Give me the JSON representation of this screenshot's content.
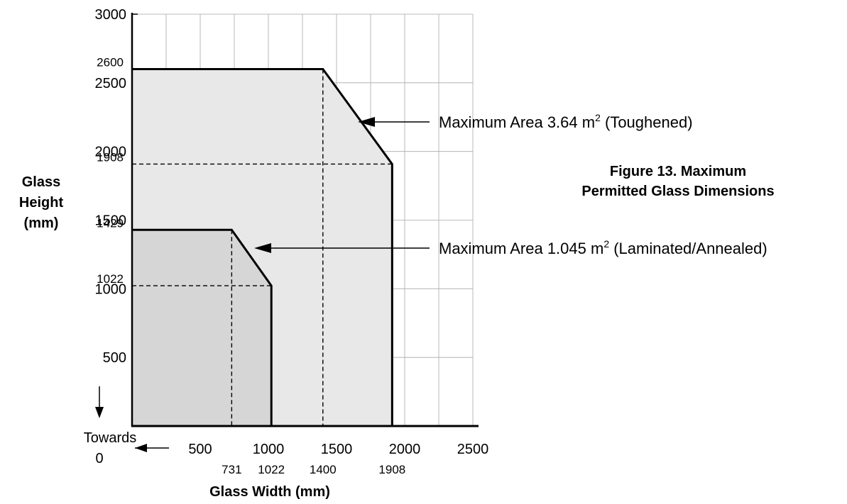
{
  "chart_data": {
    "type": "area",
    "figure_caption": [
      "Figure 13. Maximum",
      "Permitted Glass Dimensions"
    ],
    "xlabel": "Glass Width (mm)",
    "ylabel": [
      "Glass",
      "Height",
      "(mm)"
    ],
    "xlim": [
      0,
      2500
    ],
    "ylim": [
      0,
      3000
    ],
    "grid": true,
    "x_ticks_major": [
      "500",
      "1000",
      "1500",
      "2000",
      "2500"
    ],
    "x_ticks_minor": [
      "731",
      "1022",
      "1400",
      "1908"
    ],
    "y_ticks_major": [
      "500",
      "1000",
      "1500",
      "2000",
      "2500",
      "3000"
    ],
    "y_ticks_minor": [
      "1022",
      "1429",
      "1908",
      "2600"
    ],
    "towards_zero_label": [
      "Towards",
      "0"
    ],
    "series": [
      {
        "label_text": "Maximum Area 3.64 m",
        "label_sup": "2",
        "label_suffix": " (Toughened)",
        "color": "#e8e8e8",
        "x": [
          0,
          1400,
          1908,
          1908
        ],
        "y": [
          2600,
          2600,
          1908,
          0
        ],
        "guide_x": 1400,
        "guide_y": 1908
      },
      {
        "label_text": "Maximum Area 1.045 m",
        "label_sup": "2",
        "label_suffix": " (Laminated/Annealed)",
        "color": "#d6d6d6",
        "x": [
          0,
          731,
          1022,
          1022
        ],
        "y": [
          1429,
          1429,
          1022,
          0
        ],
        "guide_x": 731,
        "guide_y": 1022
      }
    ]
  }
}
